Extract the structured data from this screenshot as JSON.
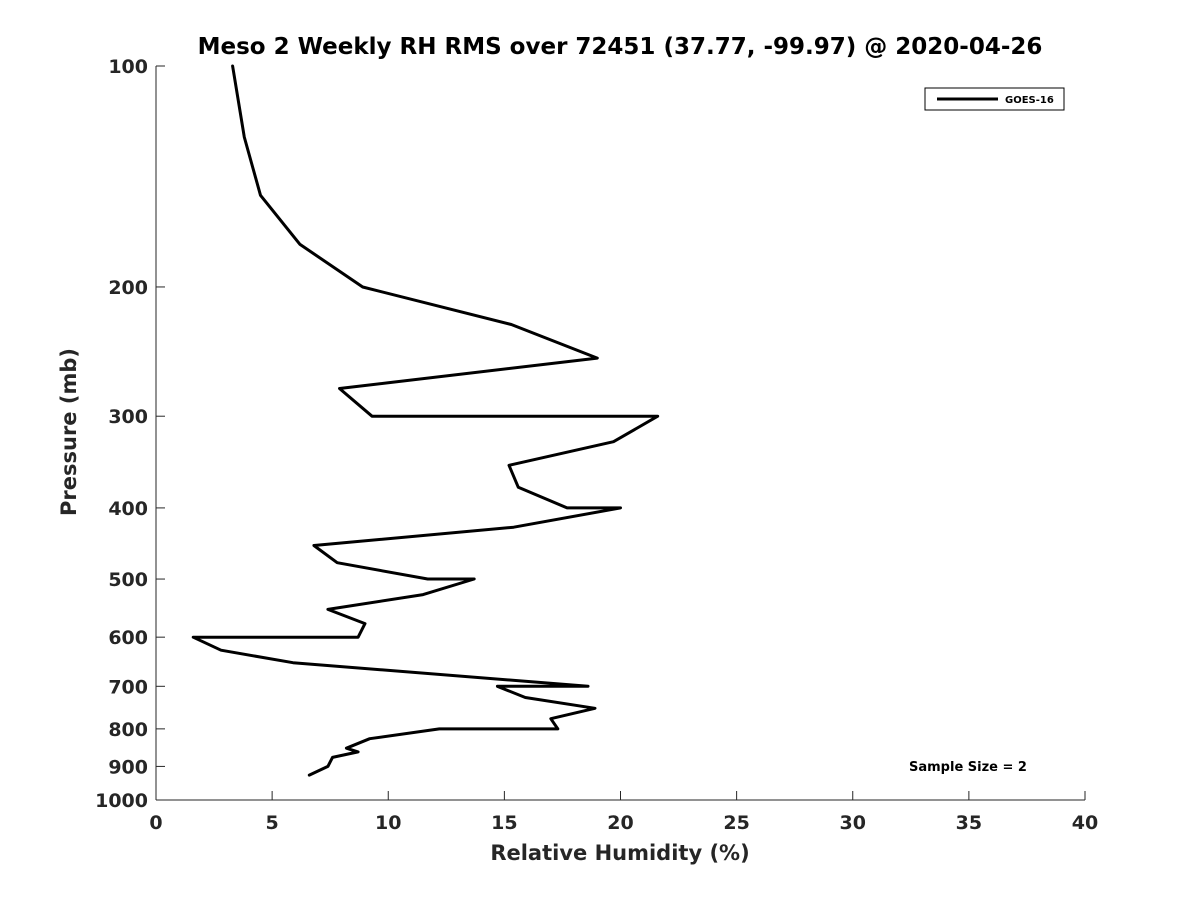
{
  "chart_data": {
    "type": "line",
    "title": "Meso 2 Weekly RH RMS over 72451 (37.77, -99.97) @ 2020-04-26",
    "xlabel": "Relative Humidity (%)",
    "ylabel": "Pressure (mb)",
    "xlim": [
      0,
      40
    ],
    "ylim": [
      100,
      1000
    ],
    "y_scale": "log",
    "y_reversed": true,
    "x_ticks": [
      0,
      5,
      10,
      15,
      20,
      25,
      30,
      35,
      40
    ],
    "y_ticks": [
      100,
      200,
      300,
      400,
      500,
      600,
      700,
      800,
      900,
      1000
    ],
    "grid": false,
    "legend_position": "top-right",
    "annotation": "Sample Size = 2",
    "series": [
      {
        "name": "GOES-16",
        "color": "#000000",
        "points": [
          [
            3.3,
            100
          ],
          [
            3.8,
            125
          ],
          [
            4.5,
            150
          ],
          [
            6.2,
            175
          ],
          [
            8.9,
            200
          ],
          [
            15.3,
            225
          ],
          [
            19.0,
            250
          ],
          [
            7.9,
            275
          ],
          [
            9.3,
            300
          ],
          [
            21.6,
            300
          ],
          [
            19.7,
            325
          ],
          [
            15.2,
            350
          ],
          [
            15.6,
            375
          ],
          [
            17.7,
            400
          ],
          [
            20.0,
            400
          ],
          [
            15.4,
            425
          ],
          [
            6.8,
            450
          ],
          [
            7.8,
            475
          ],
          [
            11.7,
            500
          ],
          [
            13.7,
            500
          ],
          [
            11.5,
            525
          ],
          [
            7.4,
            550
          ],
          [
            9.0,
            575
          ],
          [
            8.7,
            600
          ],
          [
            1.6,
            600
          ],
          [
            2.8,
            625
          ],
          [
            5.9,
            650
          ],
          [
            18.6,
            700
          ],
          [
            14.7,
            700
          ],
          [
            15.9,
            725
          ],
          [
            18.9,
            750
          ],
          [
            17.0,
            775
          ],
          [
            17.3,
            800
          ],
          [
            12.2,
            800
          ],
          [
            9.2,
            825
          ],
          [
            8.2,
            850
          ],
          [
            8.7,
            860
          ],
          [
            7.6,
            875
          ],
          [
            7.4,
            900
          ],
          [
            6.6,
            925
          ]
        ]
      }
    ]
  }
}
